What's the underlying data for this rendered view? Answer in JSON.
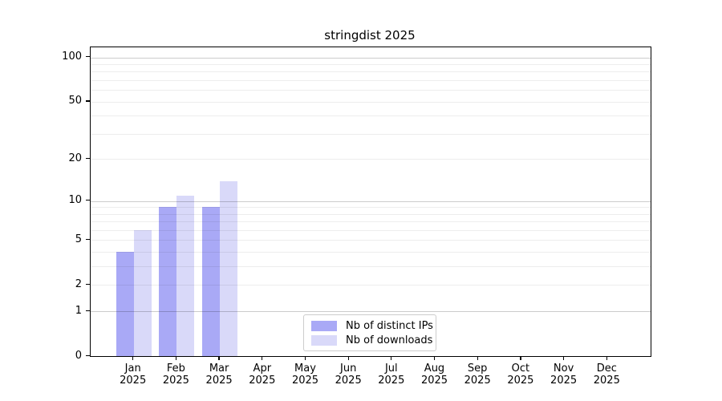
{
  "chart_data": {
    "type": "bar",
    "title": "stringdist 2025",
    "categories": [
      "Jan",
      "Feb",
      "Mar",
      "Apr",
      "May",
      "Jun",
      "Jul",
      "Aug",
      "Sep",
      "Oct",
      "Nov",
      "Dec"
    ],
    "category_sublabel": "2025",
    "series": [
      {
        "name": "Nb of distinct IPs",
        "color": "#a9a9f6",
        "values": [
          4,
          9,
          9,
          0,
          0,
          0,
          0,
          0,
          0,
          0,
          0,
          0
        ]
      },
      {
        "name": "Nb of downloads",
        "color": "#d9d9f9",
        "values": [
          6,
          11,
          14,
          0,
          0,
          0,
          0,
          0,
          0,
          0,
          0,
          0
        ]
      }
    ],
    "y_scale": "log1p",
    "ylim": [
      0,
      117
    ],
    "y_ticks": [
      100,
      50,
      20,
      10,
      5,
      2,
      1,
      0
    ],
    "minor_gridlines": [
      2,
      3,
      4,
      5,
      6,
      7,
      8,
      9,
      20,
      30,
      40,
      50,
      60,
      70,
      80,
      90
    ],
    "major_gridlines": [
      1,
      10,
      100
    ],
    "grid": "on",
    "legend_position": "lower center",
    "xlabel": "",
    "ylabel": ""
  }
}
